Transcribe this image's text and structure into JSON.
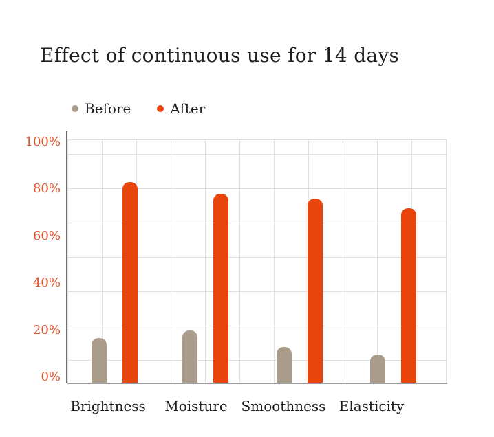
{
  "chart_data": {
    "type": "bar",
    "title": "Effect of continuous use for 14 days",
    "categories": [
      "Brightness",
      "Moisture",
      "Smoothness",
      "Elasticity"
    ],
    "series": [
      {
        "name": "Before",
        "color": "#a99c8a",
        "values": [
          17,
          20,
          13,
          10
        ]
      },
      {
        "name": "After",
        "color": "#e8450d",
        "values": [
          83,
          78,
          76,
          72
        ]
      }
    ],
    "xlabel": "",
    "ylabel": "",
    "y_ticks": [
      "0%",
      "20%",
      "40%",
      "60%",
      "80%",
      "100%"
    ],
    "ylim": [
      0,
      100
    ],
    "grid": true,
    "legend_position": "top-left"
  },
  "colors": {
    "tick_label": "#e0522b",
    "text": "#1d1d1d",
    "grid_line": "#e0e0e0",
    "y_axis_line": "#6f6f6f",
    "x_axis_line": "#9b9b9b",
    "background": "#ffffff"
  }
}
